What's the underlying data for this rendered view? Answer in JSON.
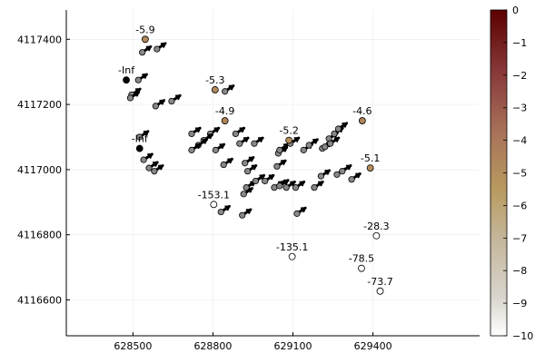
{
  "chart_data": {
    "type": "scatter",
    "title": "",
    "xlabel": "",
    "ylabel": "",
    "xlim": [
      628250,
      629800
    ],
    "ylim": [
      4116490,
      4117490
    ],
    "x_ticks": [
      628500,
      628800,
      629100,
      629400
    ],
    "x_tick_labels": [
      "628500",
      "628800",
      "629100",
      "629400"
    ],
    "y_ticks": [
      4116600,
      4116800,
      4117000,
      4117200,
      4117400
    ],
    "y_tick_labels": [
      "4116600",
      "4116800",
      "4117000",
      "4117200",
      "4117400"
    ],
    "grid": true,
    "colorbar": {
      "range": [
        -10,
        0
      ],
      "ticks": [
        0,
        -1,
        -2,
        -3,
        -4,
        -5,
        -6,
        -7,
        -8,
        -9,
        -10
      ],
      "tick_labels": [
        "0",
        "−1",
        "−2",
        "−3",
        "−4",
        "−5",
        "−6",
        "−7",
        "−8",
        "−9",
        "−10"
      ],
      "colors": [
        "#ffffff",
        "#b8975c",
        "#5c0000"
      ]
    },
    "labeled_points": [
      {
        "x": 628475,
        "y": 4117275,
        "value": "-Inf",
        "label": "-Inf",
        "fill": "#000000"
      },
      {
        "x": 628546,
        "y": 4117400,
        "value": -5.9,
        "label": "-5.9",
        "fill": "#b08a5a"
      },
      {
        "x": 628808,
        "y": 4117245,
        "value": -5.3,
        "label": "-5.3",
        "fill": "#b48d5c"
      },
      {
        "x": 628845,
        "y": 4117150,
        "value": -4.9,
        "label": "-4.9",
        "fill": "#b08758"
      },
      {
        "x": 628525,
        "y": 4117065,
        "value": "-Inf",
        "label": "-Inf",
        "fill": "#000000"
      },
      {
        "x": 629085,
        "y": 4117090,
        "value": -5.2,
        "label": "-5.2",
        "fill": "#b48d5c"
      },
      {
        "x": 629360,
        "y": 4117150,
        "value": -4.6,
        "label": "-4.6",
        "fill": "#b08557"
      },
      {
        "x": 629390,
        "y": 4117005,
        "value": -5.1,
        "label": "-5.1",
        "fill": "#b48c5b"
      },
      {
        "x": 628803,
        "y": 4116893,
        "value": -153.1,
        "label": "-153.1",
        "fill": "#ffffff"
      },
      {
        "x": 629413,
        "y": 4116797,
        "value": -28.3,
        "label": "-28.3",
        "fill": "#ffffff"
      },
      {
        "x": 629097,
        "y": 4116733,
        "value": -135.1,
        "label": "-135.1",
        "fill": "#ffffff"
      },
      {
        "x": 629357,
        "y": 4116697,
        "value": -78.5,
        "label": "-78.5",
        "fill": "#ffffff"
      },
      {
        "x": 629427,
        "y": 4116627,
        "value": -73.7,
        "label": "-73.7",
        "fill": "#ffffff"
      }
    ],
    "vectors": [
      {
        "x": 628535,
        "y": 4117360
      },
      {
        "x": 628590,
        "y": 4117370
      },
      {
        "x": 628520,
        "y": 4117275
      },
      {
        "x": 628495,
        "y": 4117230
      },
      {
        "x": 628490,
        "y": 4117220
      },
      {
        "x": 628585,
        "y": 4117195
      },
      {
        "x": 628645,
        "y": 4117210
      },
      {
        "x": 628845,
        "y": 4117240
      },
      {
        "x": 628720,
        "y": 4117110
      },
      {
        "x": 628790,
        "y": 4117110
      },
      {
        "x": 628765,
        "y": 4117090
      },
      {
        "x": 628745,
        "y": 4117075
      },
      {
        "x": 628720,
        "y": 4117060
      },
      {
        "x": 628810,
        "y": 4117060
      },
      {
        "x": 628885,
        "y": 4117110
      },
      {
        "x": 628955,
        "y": 4117080
      },
      {
        "x": 628900,
        "y": 4117080
      },
      {
        "x": 628840,
        "y": 4117015
      },
      {
        "x": 628920,
        "y": 4117020
      },
      {
        "x": 628930,
        "y": 4116995
      },
      {
        "x": 628915,
        "y": 4116925
      },
      {
        "x": 628925,
        "y": 4116945
      },
      {
        "x": 628830,
        "y": 4116870
      },
      {
        "x": 628910,
        "y": 4116860
      },
      {
        "x": 628960,
        "y": 4116965
      },
      {
        "x": 628995,
        "y": 4116965
      },
      {
        "x": 629030,
        "y": 4116945
      },
      {
        "x": 629050,
        "y": 4116950
      },
      {
        "x": 629075,
        "y": 4116945
      },
      {
        "x": 629110,
        "y": 4116945
      },
      {
        "x": 629040,
        "y": 4117010
      },
      {
        "x": 629045,
        "y": 4117050
      },
      {
        "x": 629050,
        "y": 4117060
      },
      {
        "x": 629090,
        "y": 4117080
      },
      {
        "x": 629140,
        "y": 4117060
      },
      {
        "x": 629160,
        "y": 4117075
      },
      {
        "x": 629235,
        "y": 4117095
      },
      {
        "x": 629255,
        "y": 4117110
      },
      {
        "x": 629270,
        "y": 4117125
      },
      {
        "x": 629210,
        "y": 4117065
      },
      {
        "x": 629220,
        "y": 4117070
      },
      {
        "x": 629240,
        "y": 4117080
      },
      {
        "x": 629265,
        "y": 4116985
      },
      {
        "x": 629285,
        "y": 4116995
      },
      {
        "x": 629180,
        "y": 4116945
      },
      {
        "x": 629320,
        "y": 4116970
      },
      {
        "x": 629115,
        "y": 4116865
      },
      {
        "x": 628540,
        "y": 4117030
      },
      {
        "x": 628560,
        "y": 4117005
      },
      {
        "x": 628580,
        "y": 4116995
      },
      {
        "x": 628525,
        "y": 4117100
      },
      {
        "x": 629205,
        "y": 4116980
      }
    ]
  }
}
